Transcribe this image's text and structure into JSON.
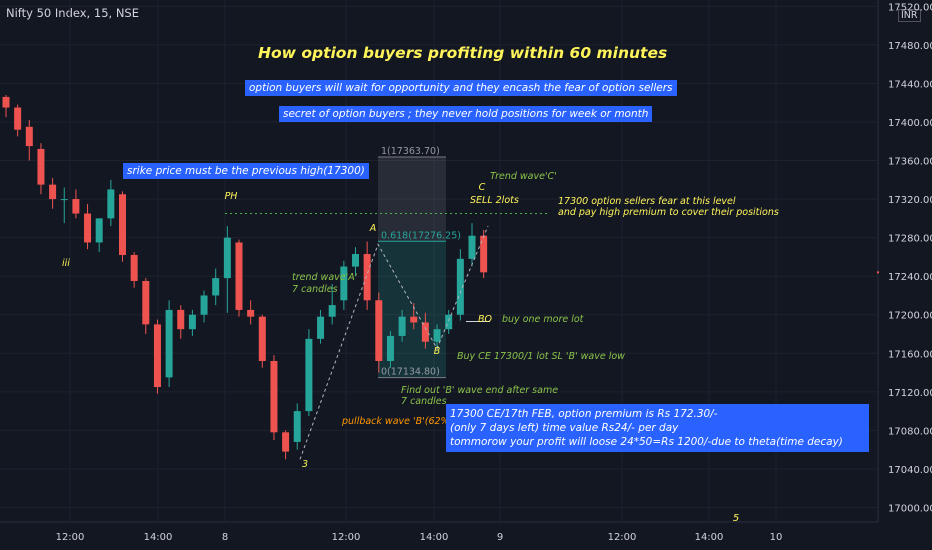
{
  "header": {
    "symbol": "Nifty 50 Index, 15, NSE",
    "currency": "INR"
  },
  "title": "How option buyers profiting within 60 minutes",
  "boxes": {
    "line1": "option buyers will wait for opportunity and they encash the fear of option sellers",
    "line2": "secret of option buyers ; they never hold positions for week or month",
    "strike": "srike price must be the previous high(17300)",
    "info": [
      "17300 CE/17th FEB, option premium is Rs 172.30/-",
      "(only 7 days left) time value Rs24/- per day",
      "tommorow your profit will loose 24*50=Rs 1200/-due to theta(time decay)"
    ]
  },
  "labels": {
    "iii": "iii",
    "ph": "PH",
    "three": "3",
    "wave_a": "A",
    "wave_b": "B",
    "wave_c": "C",
    "sell": "SELL 2lots",
    "bo": "BO",
    "five": "5",
    "trend_c": "Trend wave'C'",
    "fear_1": "17300 option sellers fear at this level",
    "fear_2": "and pay high premium to cover their positions",
    "trend_a_1": "trend wave'A'",
    "trend_a_2": "7 candles",
    "buy_more": "buy one more lot",
    "buy_ce": "Buy CE 17300/1 lot SL 'B' wave low",
    "find_1": "Find out 'B' wave end after same",
    "find_2": "7 candles",
    "pullback": "pullback wave 'B'(62% of A)",
    "fib_top": "1(17363.70)",
    "fib_618": "0.618(17276.25)",
    "fib_bottom": "0(17134.80)"
  },
  "colors": {
    "background": "#131722",
    "up": "#26a69a",
    "down": "#ef5350",
    "text": "#d1d4dc",
    "box": "#2962ff",
    "yellow": "#fff45a",
    "green_text": "#8bc34a",
    "orange": "#ff9800"
  },
  "chart_data": {
    "type": "candlestick",
    "timeframe": "15",
    "y_ticks": [
      17000,
      17040,
      17080,
      17120,
      17160,
      17200,
      17240,
      17280,
      17320,
      17360,
      17400,
      17440,
      17480,
      17520
    ],
    "x_ticks": [
      "12:00",
      "14:00",
      "8",
      "12:00",
      "14:00",
      "9",
      "12:00",
      "14:00",
      "10"
    ],
    "ylim": [
      16980,
      17530
    ],
    "candles": [
      [
        17426,
        17428,
        17405,
        17415
      ],
      [
        17415,
        17418,
        17385,
        17392
      ],
      [
        17395,
        17402,
        17360,
        17375
      ],
      [
        17372,
        17378,
        17325,
        17335
      ],
      [
        17335,
        17342,
        17310,
        17320
      ],
      [
        17320,
        17332,
        17295,
        17320
      ],
      [
        17320,
        17330,
        17300,
        17305
      ],
      [
        17305,
        17315,
        17268,
        17275
      ],
      [
        17275,
        17300,
        17265,
        17300
      ],
      [
        17300,
        17340,
        17292,
        17330
      ],
      [
        17325,
        17328,
        17255,
        17262
      ],
      [
        17262,
        17265,
        17228,
        17235
      ],
      [
        17235,
        17238,
        17180,
        17190
      ],
      [
        17190,
        17195,
        17118,
        17125
      ],
      [
        17135,
        17215,
        17125,
        17205
      ],
      [
        17205,
        17210,
        17175,
        17185
      ],
      [
        17185,
        17205,
        17178,
        17200
      ],
      [
        17200,
        17225,
        17192,
        17220
      ],
      [
        17220,
        17248,
        17210,
        17238
      ],
      [
        17238,
        17292,
        17202,
        17280
      ],
      [
        17275,
        17278,
        17198,
        17205
      ],
      [
        17205,
        17215,
        17190,
        17198
      ],
      [
        17198,
        17200,
        17145,
        17152
      ],
      [
        17152,
        17158,
        17070,
        17078
      ],
      [
        17078,
        17080,
        17050,
        17058
      ],
      [
        17068,
        17108,
        17060,
        17100
      ],
      [
        17100,
        17185,
        17095,
        17175
      ],
      [
        17175,
        17205,
        17170,
        17198
      ],
      [
        17198,
        17232,
        17190,
        17210
      ],
      [
        17215,
        17256,
        17205,
        17250
      ],
      [
        17250,
        17270,
        17240,
        17263
      ],
      [
        17263,
        17276,
        17205,
        17215
      ],
      [
        17215,
        17223,
        17140,
        17152
      ],
      [
        17152,
        17183,
        17145,
        17178
      ],
      [
        17178,
        17205,
        17172,
        17198
      ],
      [
        17198,
        17212,
        17185,
        17192
      ],
      [
        17192,
        17202,
        17165,
        17172
      ],
      [
        17172,
        17190,
        17165,
        17185
      ],
      [
        17185,
        17205,
        17180,
        17200
      ],
      [
        17200,
        17268,
        17194,
        17258
      ],
      [
        17258,
        17295,
        17250,
        17282
      ],
      [
        17282,
        17288,
        17238,
        17244
      ]
    ],
    "fibonacci": {
      "level_1": 17363.7,
      "level_0618": 17276.25,
      "level_0": 17134.8
    },
    "horizontal_line": 17305
  }
}
